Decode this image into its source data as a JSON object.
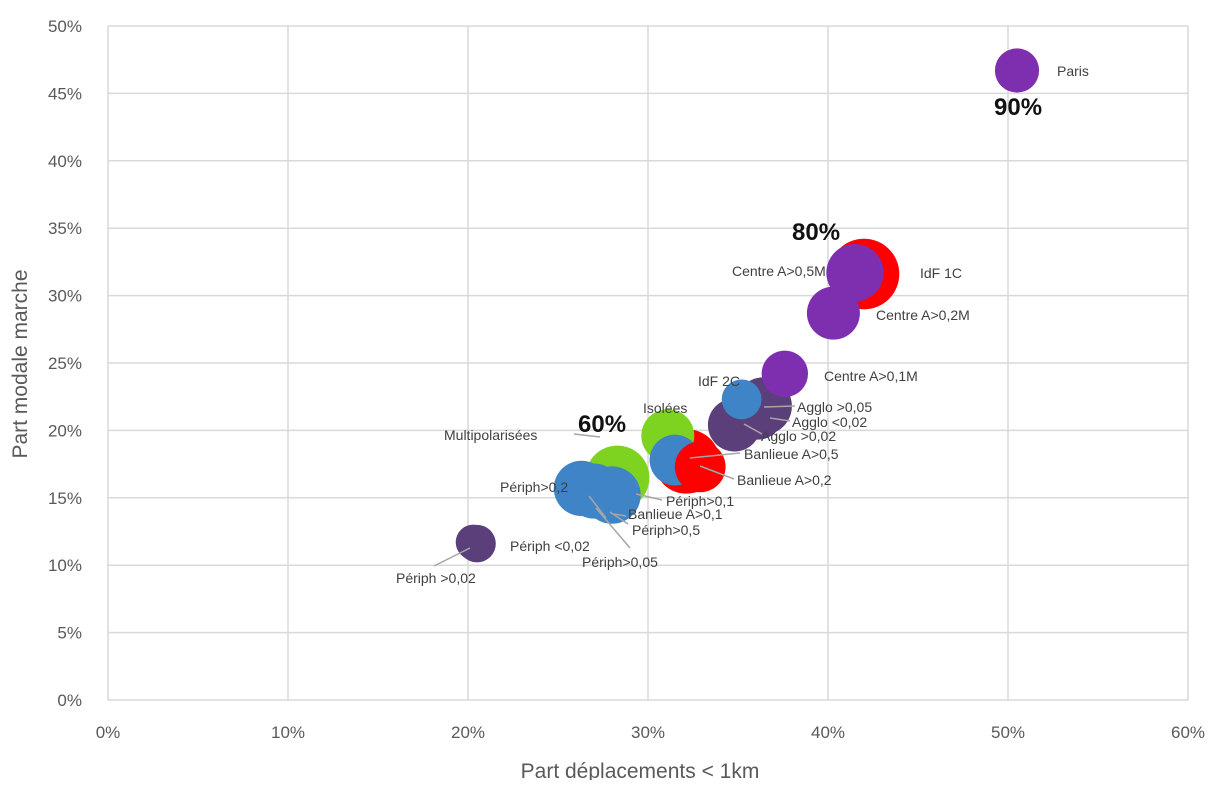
{
  "chart_data": {
    "type": "scatter",
    "title": "",
    "xlabel": "Part déplacements < 1km",
    "ylabel": "Part modale marche",
    "xlim": [
      0,
      0.6
    ],
    "ylim": [
      0,
      0.5
    ],
    "x_ticks": [
      "0%",
      "10%",
      "20%",
      "30%",
      "40%",
      "50%",
      "60%"
    ],
    "y_ticks": [
      "0%",
      "5%",
      "10%",
      "15%",
      "20%",
      "25%",
      "30%",
      "35%",
      "40%",
      "45%",
      "50%"
    ],
    "grid": true,
    "points": [
      {
        "name": "Périph >0,02",
        "x": 0.205,
        "y": 0.116,
        "size": 0.4,
        "color": "#5b3f7a"
      },
      {
        "name": "Périph <0,02",
        "x": 0.203,
        "y": 0.117,
        "size": 0.35,
        "color": "#5b3f7a"
      },
      {
        "name": "Périph>0,2",
        "x": 0.263,
        "y": 0.157,
        "size": 0.8,
        "color": "#3f84c6"
      },
      {
        "name": "Périph>0,05",
        "x": 0.27,
        "y": 0.155,
        "size": 0.8,
        "color": "#3f84c6"
      },
      {
        "name": "Périph>0,5",
        "x": 0.28,
        "y": 0.152,
        "size": 0.85,
        "color": "#3f84c6"
      },
      {
        "name": "Multipolarisées",
        "x": 0.283,
        "y": 0.165,
        "size": 1.0,
        "color": "#7ed321"
      },
      {
        "name": "Isolées",
        "x": 0.311,
        "y": 0.196,
        "size": 0.75,
        "color": "#7ed321"
      },
      {
        "name": "Périph>0,1",
        "x": 0.315,
        "y": 0.178,
        "size": 0.7,
        "color": "#3f84c6"
      },
      {
        "name": "Banlieue A>0,1",
        "x": 0.322,
        "y": 0.177,
        "size": 1.0,
        "color": "#ff0000"
      },
      {
        "name": "Banlieue A>0,5",
        "x": 0.321,
        "y": 0.176,
        "size": 0.95,
        "color": "#ff0000"
      },
      {
        "name": "Banlieue A>0,2",
        "x": 0.329,
        "y": 0.173,
        "size": 0.7,
        "color": "#ff0000"
      },
      {
        "name": "IdF 2C",
        "x": 0.352,
        "y": 0.223,
        "size": 0.45,
        "color": "#3f84c6"
      },
      {
        "name": "Agglo >0,02",
        "x": 0.348,
        "y": 0.204,
        "size": 0.75,
        "color": "#5b3f7a"
      },
      {
        "name": "Agglo <0,02",
        "x": 0.361,
        "y": 0.212,
        "size": 0.7,
        "color": "#5b3f7a"
      },
      {
        "name": "Agglo >0,05",
        "x": 0.364,
        "y": 0.218,
        "size": 0.85,
        "color": "#5b3f7a"
      },
      {
        "name": "Centre A>0,1M",
        "x": 0.376,
        "y": 0.242,
        "size": 0.6,
        "color": "#7e2fb0"
      },
      {
        "name": "Centre A>0,2M",
        "x": 0.403,
        "y": 0.287,
        "size": 0.75,
        "color": "#7e2fb0"
      },
      {
        "name": "IdF 1C",
        "x": 0.42,
        "y": 0.316,
        "size": 1.15,
        "color": "#ff0000"
      },
      {
        "name": "Centre A>0,5M",
        "x": 0.415,
        "y": 0.317,
        "size": 0.85,
        "color": "#7e2fb0"
      },
      {
        "name": "Paris",
        "x": 0.505,
        "y": 0.467,
        "size": 0.55,
        "color": "#7e2fb0"
      }
    ],
    "annotations": [
      "60%",
      "80%",
      "90%"
    ]
  }
}
